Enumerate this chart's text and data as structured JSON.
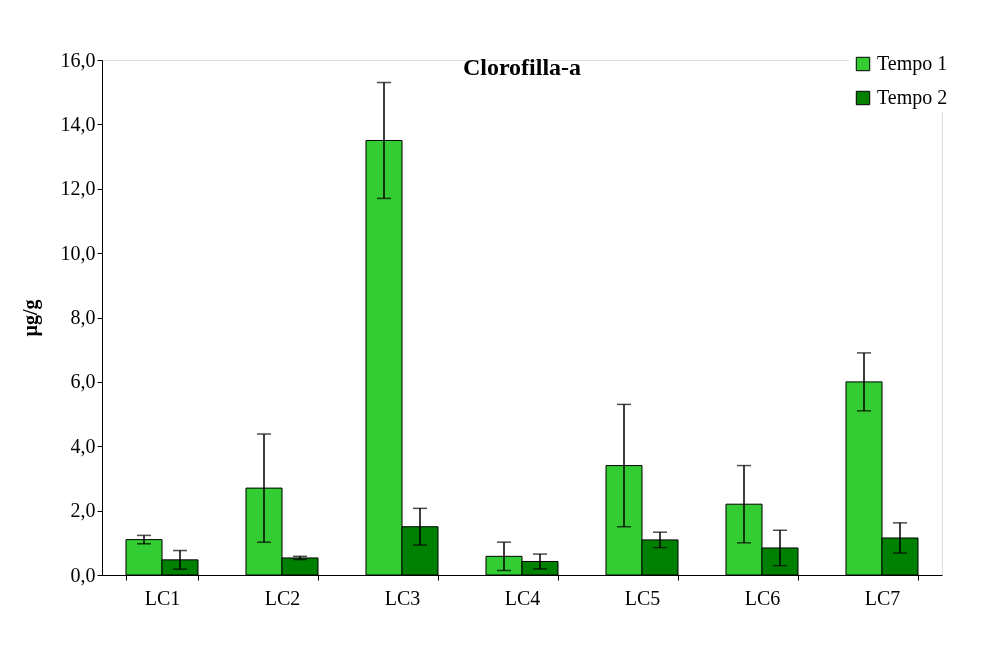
{
  "chart_data": {
    "type": "bar",
    "title": "Clorofilla-a",
    "ylabel": "µg/g",
    "categories": [
      "LC1",
      "LC2",
      "LC3",
      "LC4",
      "LC5",
      "LC6",
      "LC7"
    ],
    "series": [
      {
        "name": "Tempo 1",
        "color": "#33cc33",
        "values": [
          1.1,
          2.7,
          13.5,
          0.58,
          3.4,
          2.2,
          6.0
        ],
        "errors": [
          0.13,
          1.68,
          1.8,
          0.44,
          1.9,
          1.2,
          0.9
        ]
      },
      {
        "name": "Tempo 2",
        "color": "#008000",
        "values": [
          0.47,
          0.53,
          1.5,
          0.42,
          1.09,
          0.84,
          1.15
        ],
        "errors": [
          0.29,
          0.05,
          0.57,
          0.23,
          0.24,
          0.55,
          0.47
        ]
      }
    ],
    "ylim": [
      0,
      16
    ],
    "yticks": [
      {
        "value": 0,
        "label": "0,0"
      },
      {
        "value": 2,
        "label": "2,0"
      },
      {
        "value": 4,
        "label": "4,0"
      },
      {
        "value": 6,
        "label": "6,0"
      },
      {
        "value": 8,
        "label": "8,0"
      },
      {
        "value": 10,
        "label": "10,0"
      },
      {
        "value": 12,
        "label": "12,0"
      },
      {
        "value": 14,
        "label": "14,0"
      },
      {
        "value": 16,
        "label": "16,0"
      }
    ],
    "grid": false,
    "legend": "top right"
  }
}
